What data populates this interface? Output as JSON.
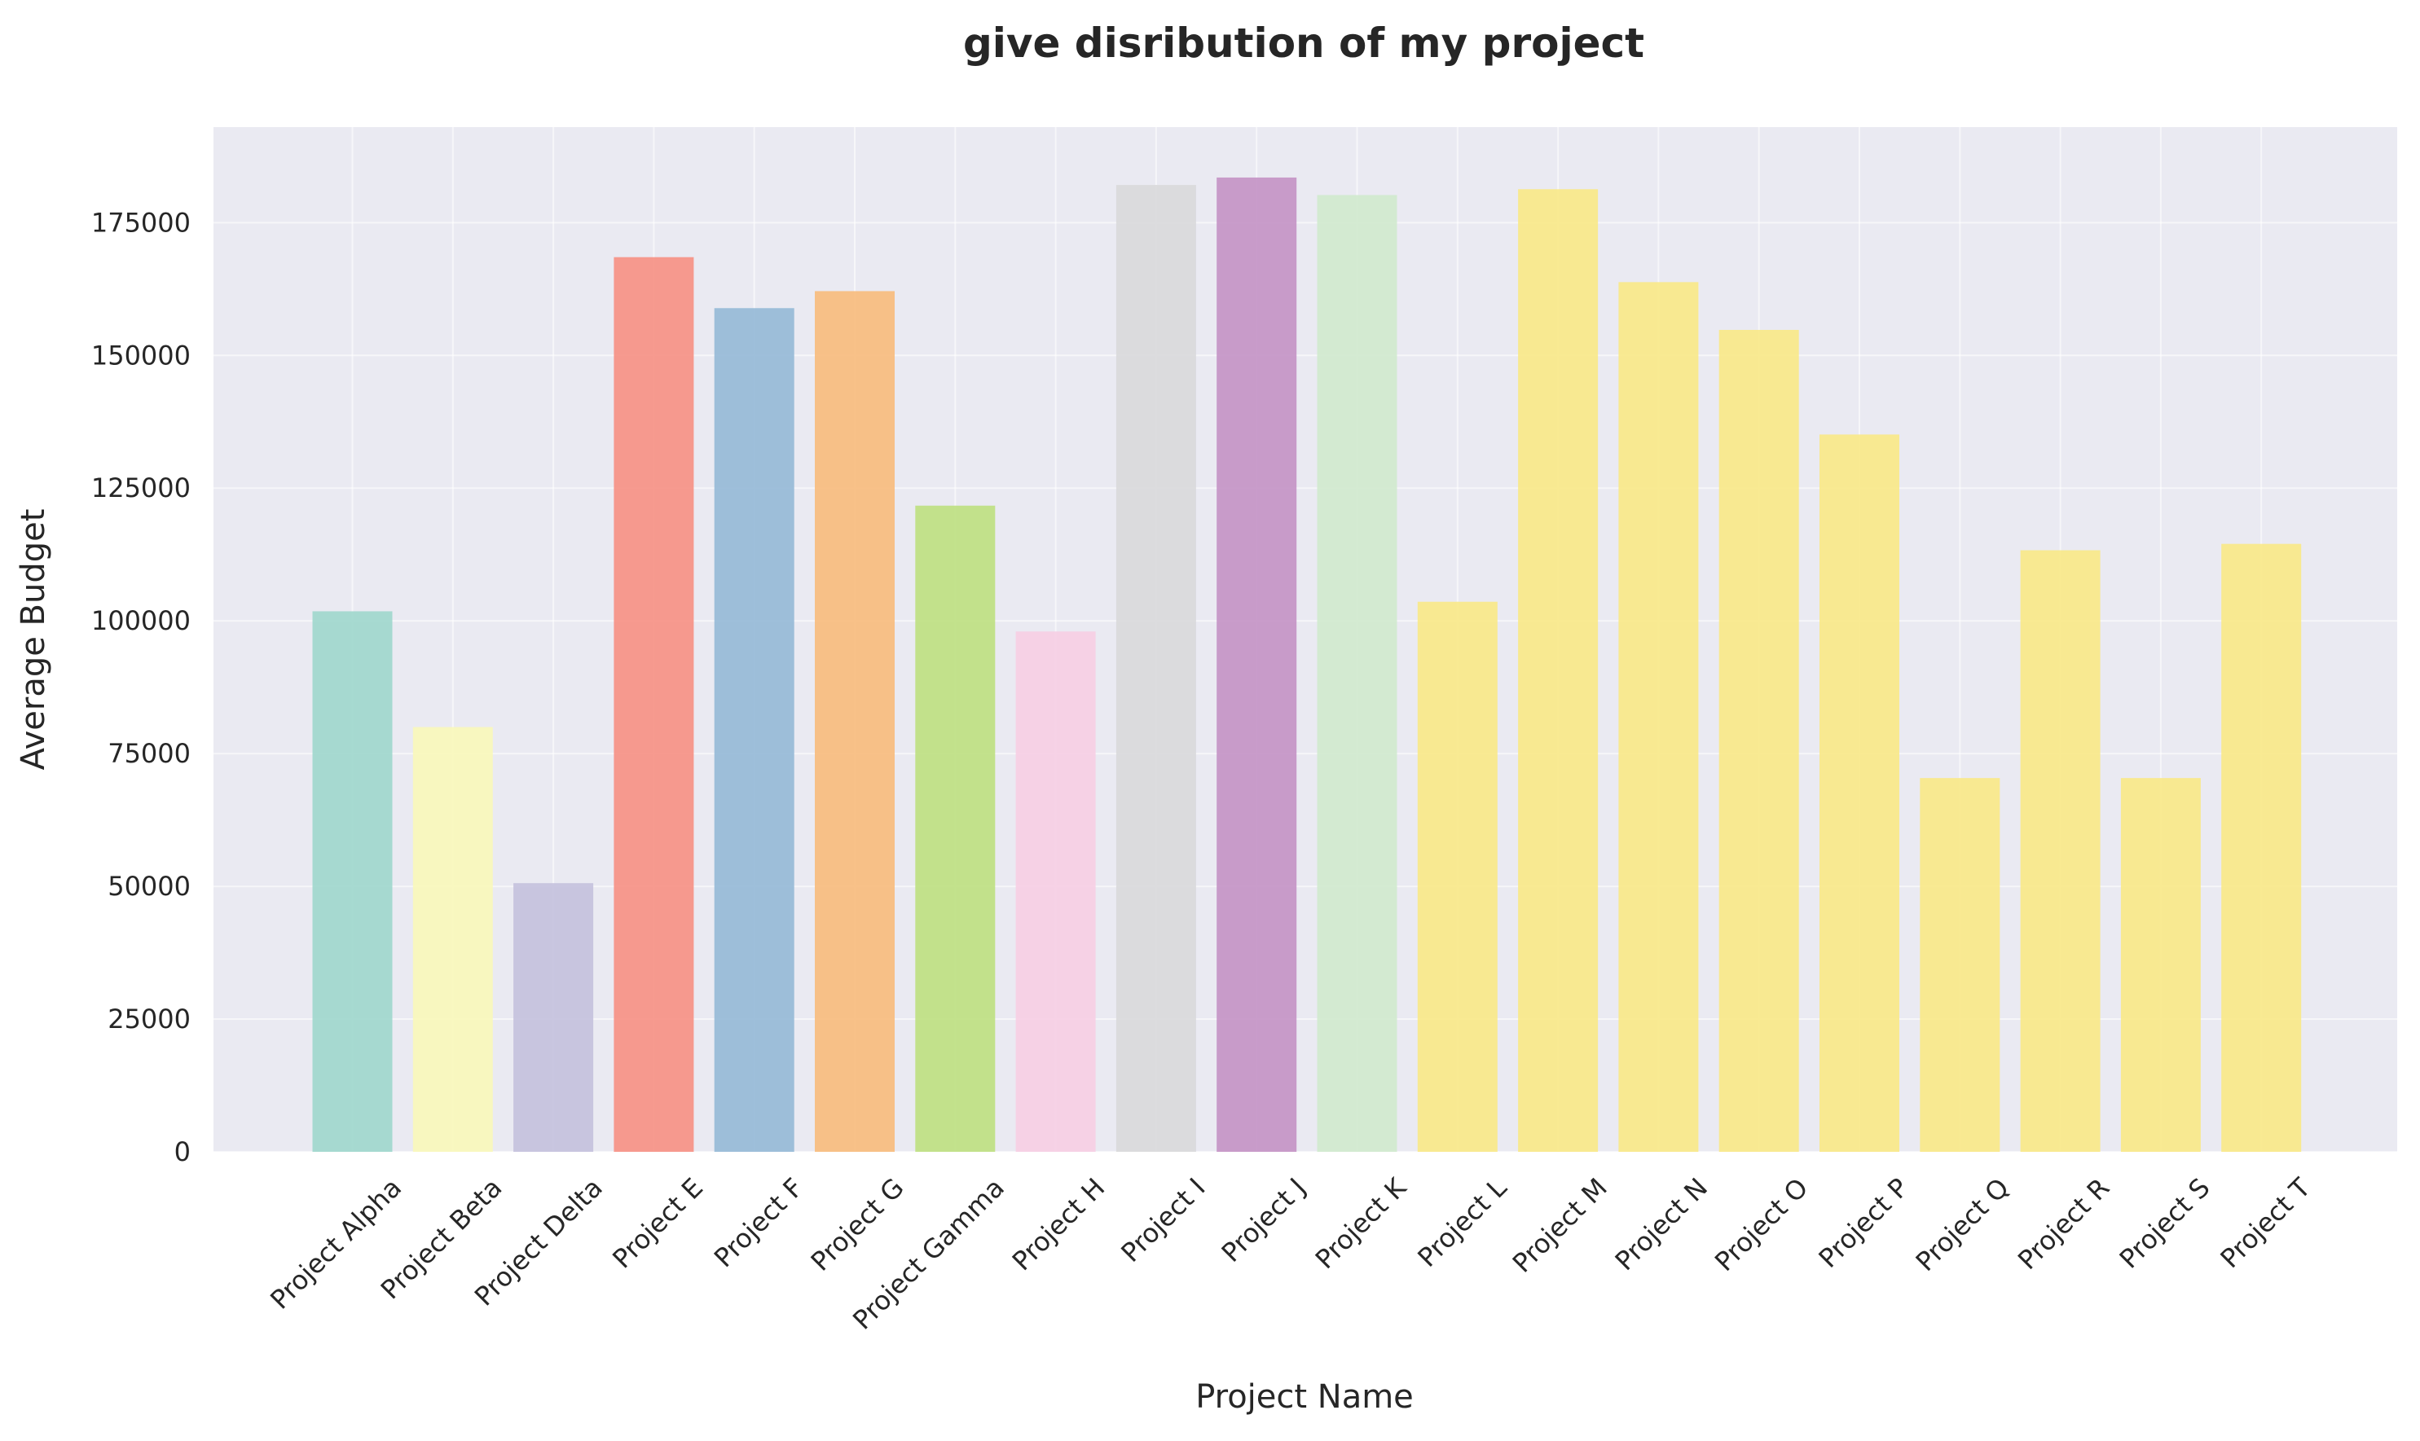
{
  "chart_data": {
    "type": "bar",
    "title": "give disribution of my project",
    "xlabel": "Project Name",
    "ylabel": "Average Budget",
    "ylim": [
      0,
      193000
    ],
    "yticks": [
      0,
      25000,
      50000,
      75000,
      100000,
      125000,
      150000,
      175000
    ],
    "ytick_labels": [
      "0",
      "25000",
      "50000",
      "75000",
      "100000",
      "125000",
      "150000",
      "175000"
    ],
    "grid": true,
    "legend": "none",
    "categories": [
      "Project Alpha",
      "Project Beta",
      "Project Delta",
      "Project E",
      "Project F",
      "Project G",
      "Project Gamma",
      "Project H",
      "Project I",
      "Project J",
      "Project K",
      "Project L",
      "Project M",
      "Project N",
      "Project O",
      "Project P",
      "Project Q",
      "Project R",
      "Project S",
      "Project T"
    ],
    "values": [
      101800,
      80000,
      50600,
      168500,
      158900,
      162100,
      121700,
      98000,
      182100,
      183500,
      180200,
      103600,
      181300,
      163800,
      154800,
      135100,
      70400,
      113300,
      70400,
      114500
    ],
    "colors": [
      "#a0d7cd",
      "#f9f8bb",
      "#c5c2de",
      "#f69286",
      "#97bad7",
      "#f8bc7f",
      "#bee083",
      "#f6cfe4",
      "#d9d9db",
      "#c594c6",
      "#d1e9cf",
      "#f9e88a",
      "#f9e88a",
      "#f9e88a",
      "#f9e88a",
      "#f9e88a",
      "#f9e88a",
      "#f9e88a",
      "#f9e88a",
      "#f9e88a"
    ]
  }
}
